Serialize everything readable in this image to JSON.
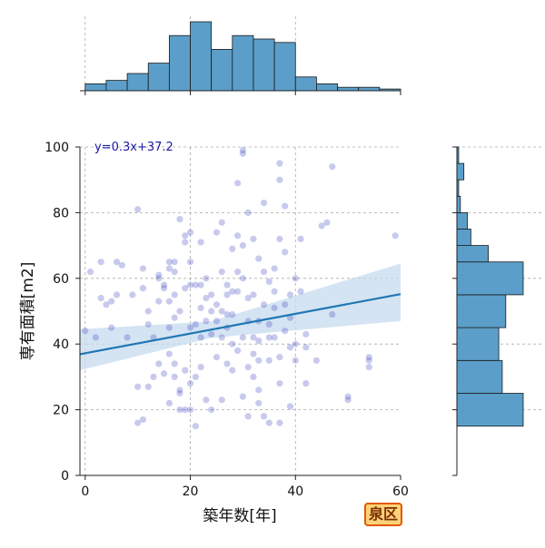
{
  "chart_data": {
    "type": "scatter",
    "title": "",
    "xlabel": "築年数[年]",
    "ylabel": "専有面積[m2]",
    "xlim": [
      -1,
      60
    ],
    "ylim": [
      0,
      100
    ],
    "x_ticks": [
      "0",
      "20",
      "40",
      "60"
    ],
    "y_ticks": [
      "0",
      "20",
      "40",
      "60",
      "80",
      "100"
    ],
    "grid": true,
    "annotation": "y=0.3x+37.2",
    "regression": {
      "slope": 0.3,
      "intercept": 37.2,
      "ci_low_start": 32.0,
      "ci_high_start": 44.5,
      "ci_low_end": 47.0,
      "ci_high_end": 64.5
    },
    "badge": "泉区",
    "colors": {
      "points": "#3a3fc0",
      "line": "#1f77b4",
      "band": "#c7dbef",
      "hist": "#5b9ec9"
    },
    "points": [
      [
        0,
        44
      ],
      [
        1,
        62
      ],
      [
        2,
        42
      ],
      [
        3,
        65
      ],
      [
        3,
        54
      ],
      [
        4,
        52
      ],
      [
        5,
        45
      ],
      [
        5,
        53
      ],
      [
        6,
        55
      ],
      [
        6,
        65
      ],
      [
        7,
        64
      ],
      [
        8,
        42
      ],
      [
        9,
        55
      ],
      [
        10,
        27
      ],
      [
        10,
        16
      ],
      [
        10,
        81
      ],
      [
        11,
        17
      ],
      [
        11,
        63
      ],
      [
        11,
        57
      ],
      [
        12,
        46
      ],
      [
        12,
        27
      ],
      [
        12,
        50
      ],
      [
        13,
        42
      ],
      [
        13,
        30
      ],
      [
        14,
        53
      ],
      [
        14,
        60
      ],
      [
        14,
        34
      ],
      [
        14,
        61
      ],
      [
        15,
        58
      ],
      [
        15,
        57
      ],
      [
        15,
        31
      ],
      [
        16,
        22
      ],
      [
        16,
        37
      ],
      [
        16,
        45
      ],
      [
        16,
        53
      ],
      [
        16,
        63
      ],
      [
        16,
        65
      ],
      [
        17,
        34
      ],
      [
        17,
        30
      ],
      [
        17,
        48
      ],
      [
        17,
        55
      ],
      [
        17,
        62
      ],
      [
        17,
        65
      ],
      [
        18,
        20
      ],
      [
        18,
        25
      ],
      [
        18,
        26
      ],
      [
        18,
        50
      ],
      [
        18,
        78
      ],
      [
        19,
        20
      ],
      [
        19,
        32
      ],
      [
        19,
        71
      ],
      [
        19,
        73
      ],
      [
        19,
        57
      ],
      [
        20,
        28
      ],
      [
        20,
        20
      ],
      [
        20,
        45
      ],
      [
        20,
        58
      ],
      [
        20,
        65
      ],
      [
        20,
        74
      ],
      [
        21,
        15
      ],
      [
        21,
        30
      ],
      [
        21,
        46
      ],
      [
        21,
        58
      ],
      [
        22,
        51
      ],
      [
        22,
        42
      ],
      [
        22,
        58
      ],
      [
        22,
        71
      ],
      [
        22,
        33
      ],
      [
        23,
        23
      ],
      [
        23,
        47
      ],
      [
        23,
        54
      ],
      [
        23,
        60
      ],
      [
        24,
        43
      ],
      [
        24,
        20
      ],
      [
        24,
        50
      ],
      [
        24,
        55
      ],
      [
        25,
        36
      ],
      [
        25,
        52
      ],
      [
        25,
        47
      ],
      [
        25,
        74
      ],
      [
        26,
        62
      ],
      [
        26,
        42
      ],
      [
        26,
        23
      ],
      [
        26,
        50
      ],
      [
        26,
        77
      ],
      [
        27,
        45
      ],
      [
        27,
        34
      ],
      [
        27,
        58
      ],
      [
        27,
        55
      ],
      [
        27,
        49
      ],
      [
        28,
        32
      ],
      [
        28,
        40
      ],
      [
        28,
        49
      ],
      [
        28,
        56
      ],
      [
        28,
        69
      ],
      [
        29,
        56
      ],
      [
        29,
        38
      ],
      [
        29,
        89
      ],
      [
        29,
        73
      ],
      [
        29,
        62
      ],
      [
        30,
        24
      ],
      [
        30,
        42
      ],
      [
        30,
        98
      ],
      [
        30,
        99
      ],
      [
        30,
        70
      ],
      [
        30,
        60
      ],
      [
        31,
        54
      ],
      [
        31,
        18
      ],
      [
        31,
        33
      ],
      [
        31,
        80
      ],
      [
        31,
        47
      ],
      [
        32,
        37
      ],
      [
        32,
        42
      ],
      [
        32,
        55
      ],
      [
        32,
        72
      ],
      [
        32,
        30
      ],
      [
        33,
        22
      ],
      [
        33,
        26
      ],
      [
        33,
        35
      ],
      [
        33,
        41
      ],
      [
        33,
        47
      ],
      [
        33,
        66
      ],
      [
        34,
        83
      ],
      [
        34,
        18
      ],
      [
        34,
        52
      ],
      [
        34,
        62
      ],
      [
        35,
        16
      ],
      [
        35,
        35
      ],
      [
        35,
        42
      ],
      [
        35,
        59
      ],
      [
        35,
        46
      ],
      [
        36,
        42
      ],
      [
        36,
        51
      ],
      [
        36,
        63
      ],
      [
        36,
        56
      ],
      [
        37,
        72
      ],
      [
        37,
        95
      ],
      [
        37,
        90
      ],
      [
        37,
        28
      ],
      [
        37,
        16
      ],
      [
        37,
        36
      ],
      [
        38,
        44
      ],
      [
        38,
        52
      ],
      [
        38,
        68
      ],
      [
        38,
        82
      ],
      [
        39,
        21
      ],
      [
        39,
        39
      ],
      [
        39,
        48
      ],
      [
        39,
        55
      ],
      [
        40,
        35
      ],
      [
        40,
        40
      ],
      [
        40,
        60
      ],
      [
        41,
        56
      ],
      [
        41,
        72
      ],
      [
        42,
        28
      ],
      [
        42,
        39
      ],
      [
        42,
        43
      ],
      [
        44,
        35
      ],
      [
        45,
        76
      ],
      [
        46,
        77
      ],
      [
        47,
        94
      ],
      [
        47,
        49
      ],
      [
        50,
        24
      ],
      [
        50,
        23
      ],
      [
        54,
        36
      ],
      [
        54,
        33
      ],
      [
        54,
        35
      ],
      [
        59,
        73
      ]
    ],
    "hist_x": {
      "bin_edges": [
        0,
        4,
        8,
        12,
        16,
        20,
        24,
        28,
        32,
        36,
        40,
        44,
        48,
        52,
        56,
        60
      ],
      "counts": [
        2,
        3,
        5,
        8,
        16,
        20,
        12,
        16,
        15,
        14,
        4,
        2,
        1,
        1,
        0.5
      ]
    },
    "hist_y": {
      "bin_edges": [
        15,
        25,
        35,
        45,
        55,
        65,
        70,
        75,
        80,
        85,
        90,
        95,
        100
      ],
      "counts": [
        19,
        13,
        12,
        14,
        19,
        9,
        4,
        3,
        1,
        0.5,
        2,
        0.5
      ]
    }
  }
}
